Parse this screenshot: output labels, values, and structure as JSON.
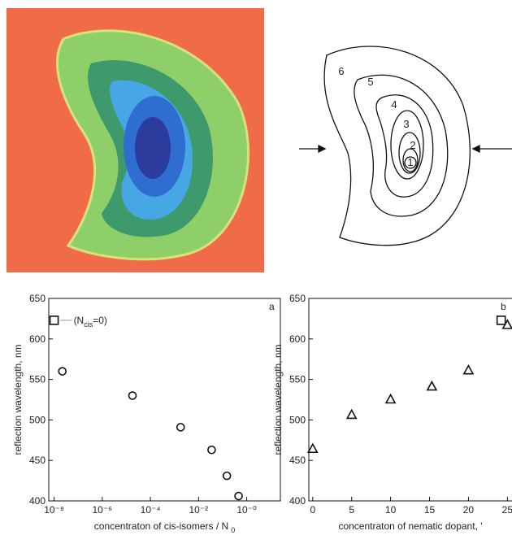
{
  "diagram": {
    "labels": [
      "1",
      "2",
      "3",
      "4",
      "5",
      "6"
    ]
  },
  "chart_data": [
    {
      "type": "scatter",
      "panel_label": "a",
      "xlabel": "concentraton of cis-isomers / N",
      "xlabel_sub": "0",
      "ylabel": "reflection wavelength, nm",
      "xscale": "log",
      "xlim": [
        6e-09,
        25
      ],
      "ylim": [
        400,
        650
      ],
      "xticks": [
        {
          "value": 1e-08,
          "label": "10⁻⁸"
        },
        {
          "value": 1e-06,
          "label": "10⁻⁶"
        },
        {
          "value": 0.0001,
          "label": "10⁻⁴"
        },
        {
          "value": 0.01,
          "label": "10⁻²"
        },
        {
          "value": 1,
          "label": "10⁻⁰"
        }
      ],
      "yticks": [
        400,
        450,
        500,
        550,
        600,
        650
      ],
      "annotation": {
        "text": "(N",
        "sub": "cis",
        "tail": "=0)"
      },
      "series": [
        {
          "marker": "circle",
          "color": "#111111",
          "x": [
            2.2e-08,
            1.8e-05,
            0.0018,
            0.035,
            0.15,
            0.46
          ],
          "values": [
            560,
            530,
            491,
            463,
            431,
            406
          ]
        },
        {
          "marker": "square",
          "color": "#111111",
          "x": [
            1e-08
          ],
          "values": [
            623
          ]
        }
      ]
    },
    {
      "type": "scatter",
      "panel_label": "b",
      "xlabel": "concentraton of nematic dopant, '",
      "ylabel": "reflection wavelength, nm",
      "xscale": "linear",
      "xlim": [
        -0.5,
        25.8
      ],
      "ylim": [
        400,
        650
      ],
      "xticks": [
        0,
        5,
        10,
        15,
        20,
        25
      ],
      "yticks": [
        400,
        450,
        500,
        550,
        600,
        650
      ],
      "series": [
        {
          "marker": "triangle",
          "color": "#111111",
          "x": [
            0,
            5,
            10,
            15.3,
            20,
            25
          ],
          "values": [
            464,
            506,
            525,
            541,
            561,
            617
          ]
        },
        {
          "marker": "square",
          "color": "#111111",
          "x": [
            24.2
          ],
          "values": [
            623
          ]
        }
      ]
    }
  ]
}
